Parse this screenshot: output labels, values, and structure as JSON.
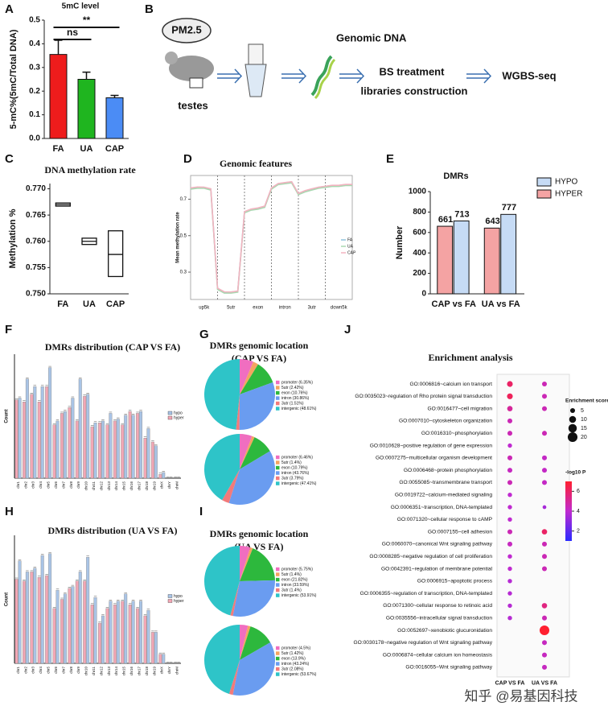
{
  "diagram": {
    "panel": "B",
    "pollutant": "PM2.5",
    "tissue": "testes",
    "step1": "Genomic DNA",
    "step2": "BS treatment",
    "step3": "libraries construction",
    "step4": "WGBS-seq"
  },
  "watermark": "知乎 @易基因科技",
  "chart_data": [
    {
      "panel": "A",
      "type": "bar",
      "title": "5mC level",
      "ylabel": "5-mC%(5mC/Total DNA)",
      "categories": [
        "FA",
        "UA",
        "CAP"
      ],
      "values": [
        0.355,
        0.25,
        0.172
      ],
      "errors": [
        0.06,
        0.03,
        0.01
      ],
      "colors": [
        "#ee1c1c",
        "#1fb51f",
        "#4b8cf5"
      ],
      "ylim": [
        0,
        0.5
      ],
      "yticks": [
        {
          "value": 0,
          "label": "0.0"
        },
        0.1,
        0.2,
        0.3,
        0.4,
        0.5
      ],
      "annotations": [
        "ns",
        "**"
      ]
    },
    {
      "panel": "C",
      "type": "range",
      "title": "DNA methylation rate",
      "ylabel": "Methylation %",
      "categories": [
        "FA",
        "UA",
        "CAP"
      ],
      "low": [
        0.7667,
        0.7594,
        0.7533
      ],
      "mid": [
        0.767,
        0.76,
        0.7575
      ],
      "high": [
        0.7673,
        0.7606,
        0.762
      ],
      "ylim": [
        0.75,
        0.771
      ],
      "yticks": [
        {
          "value": 0.75,
          "label": "0.750"
        },
        {
          "value": 0.755,
          "label": "0.755"
        },
        {
          "value": 0.76,
          "label": "0.760"
        },
        {
          "value": 0.765,
          "label": "0.765"
        },
        {
          "value": 0.77,
          "label": "0.770"
        }
      ]
    },
    {
      "panel": "D",
      "type": "line",
      "title": "Genomic features",
      "ylabel": "Mean methylation rate",
      "regions": [
        "up5k",
        "5utr",
        "exon",
        "intron",
        "3utr",
        "down5k"
      ],
      "x": [
        0,
        0.25,
        0.5,
        0.75,
        1,
        1.25,
        1.5,
        1.75,
        2,
        2.25,
        2.5,
        2.75,
        3,
        3.25,
        3.5,
        3.75,
        4,
        4.25,
        4.5,
        4.75,
        5,
        5.25,
        5.5,
        5.75,
        6
      ],
      "xlim": [
        0,
        6
      ],
      "ylim": [
        0.15,
        0.83
      ],
      "yticks": [
        0.3,
        0.5,
        0.7
      ],
      "legend": "right",
      "series": [
        {
          "name": "FA",
          "color": "#8fc3dc",
          "values": [
            0.76,
            0.765,
            0.765,
            0.755,
            0.21,
            0.19,
            0.19,
            0.195,
            0.63,
            0.645,
            0.65,
            0.66,
            0.76,
            0.785,
            0.79,
            0.795,
            0.73,
            0.745,
            0.755,
            0.765,
            0.77,
            0.775,
            0.775,
            0.78,
            0.78
          ]
        },
        {
          "name": "UA",
          "color": "#a8d8b0",
          "values": [
            0.755,
            0.76,
            0.76,
            0.75,
            0.205,
            0.185,
            0.185,
            0.19,
            0.625,
            0.64,
            0.645,
            0.655,
            0.755,
            0.78,
            0.785,
            0.79,
            0.725,
            0.74,
            0.75,
            0.76,
            0.765,
            0.77,
            0.77,
            0.775,
            0.775
          ]
        },
        {
          "name": "CAP",
          "color": "#f2b3c0",
          "values": [
            0.762,
            0.767,
            0.766,
            0.757,
            0.212,
            0.192,
            0.191,
            0.196,
            0.632,
            0.646,
            0.652,
            0.662,
            0.762,
            0.786,
            0.791,
            0.796,
            0.732,
            0.747,
            0.757,
            0.766,
            0.771,
            0.776,
            0.776,
            0.781,
            0.781
          ]
        }
      ]
    },
    {
      "panel": "E",
      "type": "bar",
      "title": "DMRs",
      "ylabel": "Number",
      "categories": [
        "CAP vs FA",
        "UA vs FA"
      ],
      "series": [
        {
          "name": "HYPER",
          "color": "#f4a3a3",
          "values": [
            661,
            643
          ]
        },
        {
          "name": "HYPO",
          "color": "#c6dbf5",
          "values": [
            713,
            777
          ]
        }
      ],
      "ylim": [
        0,
        1000
      ],
      "yticks": [
        0,
        200,
        400,
        600,
        800,
        1000
      ],
      "data_labels": true,
      "legend": "top-right"
    },
    {
      "panel": "F",
      "type": "bar",
      "title": "DMRs distribution  (CAP VS FA)",
      "ylabel": "Count",
      "categories": [
        "chr1",
        "chr2",
        "chr3",
        "chr4",
        "chr5",
        "chr6",
        "chr7",
        "chr8",
        "chr9",
        "chr10",
        "chr11",
        "chr12",
        "chr13",
        "chr14",
        "chr15",
        "chr16",
        "chr17",
        "chr18",
        "chr19",
        "chrX",
        "chrY",
        "chrM"
      ],
      "series": [
        {
          "name": "hyper",
          "color": "#f2a7b5",
          "values": [
            41,
            40,
            44,
            40,
            48,
            28,
            34,
            37,
            30,
            43,
            27,
            29,
            28,
            30,
            28,
            35,
            34,
            21,
            19,
            2,
            0,
            0
          ]
        },
        {
          "name": "hypo",
          "color": "#a9c4e6",
          "values": [
            42,
            52,
            48,
            48,
            58,
            30,
            35,
            42,
            52,
            44,
            29,
            30,
            34,
            31,
            33,
            33,
            35,
            26,
            17,
            3,
            0,
            0
          ]
        }
      ],
      "ylim": [
        0,
        65
      ],
      "legend": "right"
    },
    {
      "panel": "G",
      "type": "pie",
      "title": "DMRs genomic location",
      "subtitle": "(CAP VS FA)",
      "categories": [
        "promoter",
        "5utr",
        "exon",
        "intron",
        "3utr",
        "intergenic"
      ],
      "values": [
        6.35,
        2.42,
        10.76,
        30.86,
        1.51,
        48.61
      ],
      "value_labels": [
        "promoter (6.35%)",
        "5utr (2.42%)",
        "exon (10.76%)",
        "intron (30.86%)",
        "3utr (1.51%)",
        "intergenic (48.61%)"
      ],
      "colors": [
        "#f06ec0",
        "#f4a460",
        "#2db83d",
        "#6a9cf0",
        "#f27a7a",
        "#2ec4c8"
      ]
    },
    {
      "type": "pie",
      "categories": [
        "promoter",
        "5utr",
        "exon",
        "intron",
        "3utr",
        "intergenic"
      ],
      "values": [
        6.46,
        1.4,
        10.79,
        43.76,
        3.79,
        47.41
      ],
      "value_labels": [
        "promoter (6.46%)",
        "5utr (1.4%)",
        "exon (10.79%)",
        "intron (43.76%)",
        "3utr (3.79%)",
        "intergenic (47.41%)"
      ],
      "colors": [
        "#f06ec0",
        "#f4a460",
        "#2db83d",
        "#6a9cf0",
        "#f27a7a",
        "#2ec4c8"
      ]
    },
    {
      "panel": "H",
      "type": "bar",
      "title": "DMRs distribution  (UA VS FA)",
      "ylabel": "Count",
      "categories": [
        "chr1",
        "chr2",
        "chr3",
        "chr4",
        "chr5",
        "chr6",
        "chr7",
        "chr8",
        "chr9",
        "chr10",
        "chr11",
        "chr12",
        "chr13",
        "chr14",
        "chr15",
        "chr16",
        "chr17",
        "chr18",
        "chr19",
        "chrX",
        "chrY",
        "chrM"
      ],
      "series": [
        {
          "name": "hyper",
          "color": "#f2a7b5",
          "values": [
            46,
            45,
            50,
            47,
            48,
            30,
            35,
            41,
            45,
            45,
            32,
            22,
            30,
            32,
            34,
            32,
            30,
            26,
            17,
            5,
            0,
            0
          ]
        },
        {
          "name": "hypo",
          "color": "#a9c4e6",
          "values": [
            56,
            50,
            52,
            59,
            60,
            40,
            38,
            42,
            50,
            58,
            36,
            26,
            34,
            34,
            38,
            34,
            34,
            29,
            17,
            5,
            0,
            0
          ]
        }
      ],
      "ylim": [
        0,
        70
      ],
      "legend": "right"
    },
    {
      "panel": "I",
      "type": "pie",
      "title": "DMRs genomic location",
      "subtitle": "(UA VS FA)",
      "categories": [
        "promoter",
        "5utr",
        "exon",
        "intron",
        "3utr",
        "intergenic"
      ],
      "values": [
        5.75,
        1.4,
        21.82,
        33.59,
        1.4,
        53.91
      ],
      "value_labels": [
        "promoter (5.75%)",
        "5utr (1.4%)",
        "exon (21.82%)",
        "intron (33.59%)",
        "3utr (1.4%)",
        "intergenic (53.91%)"
      ],
      "colors": [
        "#f06ec0",
        "#f4a460",
        "#2db83d",
        "#6a9cf0",
        "#f27a7a",
        "#2ec4c8"
      ]
    },
    {
      "type": "pie",
      "categories": [
        "promoter",
        "5utr",
        "exon",
        "intron",
        "3utr",
        "intergenic"
      ],
      "values": [
        4.5,
        1.42,
        13.9,
        43.24,
        2.08,
        53.67
      ],
      "value_labels": [
        "promoter (4.5%)",
        "5utr (1.42%)",
        "exon (13.9%)",
        "intron (43.24%)",
        "3utr (2.08%)",
        "intergenic (53.67%)"
      ],
      "colors": [
        "#f06ec0",
        "#f4a460",
        "#2db83d",
        "#6a9cf0",
        "#f27a7a",
        "#2ec4c8"
      ]
    },
    {
      "panel": "J",
      "type": "dot",
      "title": "Enrichment analysis",
      "categories": [
        "GO:0006816~calcium ion transport",
        "GO:0035023~regulation of Rho protein signal transduction",
        "GO:0016477~cell migration",
        "GO:0007010~cytoskeleton organization",
        "GO:0016310~phosphorylation",
        "GO:0010628~positive regulation of gene expression",
        "GO:0007275~multicellular organism development",
        "GO:0006468~protein phosphorylation",
        "GO:0055085~transmembrane transport",
        "GO:0019722~calcium-mediated signaling",
        "GO:0006351~transcription, DNA-templated",
        "GO:0071320~cellular response to cAMP",
        "GO:0007155~cell adhesion",
        "GO:0060070~canonical Wnt signaling pathway",
        "GO:0008285~negative regulation of cell proliferation",
        "GO:0042391~regulation of membrane potential",
        "GO:0006915~apoptotic process",
        "GO:0006355~regulation of transcription, DNA-templated",
        "GO:0071300~cellular response to retinoic acid",
        "GO:0035556~intracellular signal transduction",
        "GO:0052697~xenobiotic glucuronidation",
        "GO:0030178~negative regulation of Wnt signaling pathway",
        "GO:0006874~cellular calcium ion homeostasis",
        "GO:0016055~Wnt signaling pathway"
      ],
      "series": [
        {
          "name": "CAP VS FA",
          "values": [
            7,
            7,
            6,
            5,
            5,
            4,
            5,
            5,
            5,
            4,
            4,
            4,
            5,
            5,
            4,
            4,
            4,
            4,
            4,
            4,
            null,
            null,
            null,
            null
          ],
          "pvalues": [
            6,
            6.2,
            5,
            4.5,
            4.5,
            4,
            4.5,
            4.3,
            4.5,
            4,
            4,
            4,
            4.5,
            4.3,
            4,
            4,
            3.8,
            3.8,
            3.8,
            3.8,
            null,
            null,
            null,
            null
          ]
        },
        {
          "name": "UA VS FA",
          "values": [
            5,
            5,
            5,
            null,
            5,
            null,
            5,
            5,
            5,
            null,
            3,
            null,
            6,
            5,
            5,
            5,
            null,
            null,
            6,
            5,
            20,
            5,
            5,
            5
          ],
          "pvalues": [
            4.5,
            4.5,
            4.5,
            null,
            4.5,
            null,
            4.2,
            4.2,
            4.2,
            null,
            3.5,
            null,
            6,
            4.5,
            4.5,
            4.5,
            null,
            null,
            5.5,
            4.5,
            7,
            4.3,
            4.3,
            4.3
          ]
        }
      ],
      "size_legend": {
        "title": "Enrichment score",
        "values": [
          5,
          10,
          15,
          20
        ]
      },
      "color_legend": {
        "title": "-log10 P",
        "lim": [
          1,
          7
        ],
        "ticks": [
          2,
          4,
          6
        ],
        "colormap": [
          "#2a2aff",
          "#c02ad0",
          "#ff1f2f"
        ]
      }
    }
  ]
}
